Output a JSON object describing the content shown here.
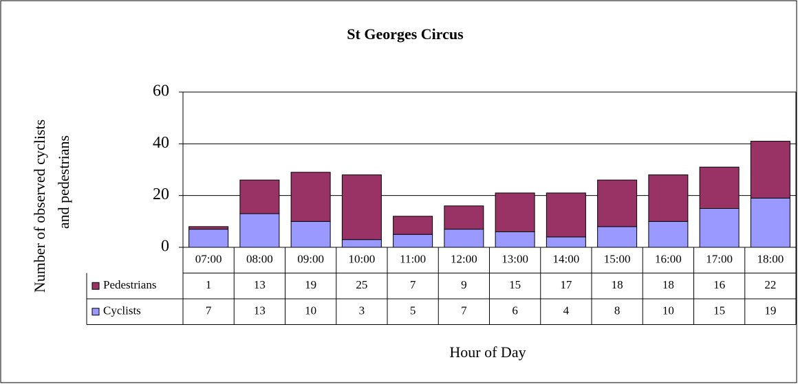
{
  "chart_data": {
    "type": "stacked_bar",
    "title": "St Georges Circus",
    "y_label_lines": [
      "Number of observed cyclists",
      "and pedestrians"
    ],
    "x_label": "Hour of Day",
    "categories": [
      "07:00",
      "08:00",
      "09:00",
      "10:00",
      "11:00",
      "12:00",
      "13:00",
      "14:00",
      "15:00",
      "16:00",
      "17:00",
      "18:00"
    ],
    "series": [
      {
        "name": "Pedestrians",
        "color": "#993366",
        "values": [
          1,
          13,
          19,
          25,
          7,
          9,
          15,
          17,
          18,
          18,
          16,
          22
        ]
      },
      {
        "name": "Cyclists",
        "color": "#9999ff",
        "values": [
          7,
          13,
          10,
          3,
          5,
          7,
          6,
          4,
          8,
          10,
          15,
          19
        ]
      }
    ],
    "ylim": [
      0,
      60
    ],
    "yticks": [
      0,
      20,
      40,
      60
    ],
    "grid": true,
    "data_table": true
  }
}
